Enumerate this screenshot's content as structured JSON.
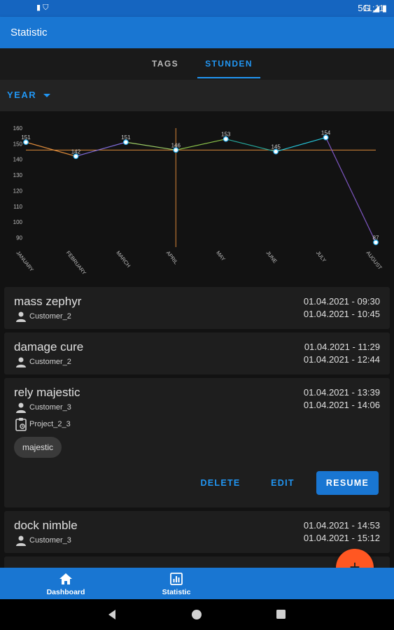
{
  "status_bar": {
    "time": "11:11",
    "network": "5G"
  },
  "app_bar": {
    "title": "Statistic"
  },
  "tabs": [
    {
      "label": "TAGS",
      "active": false
    },
    {
      "label": "STUNDEN",
      "active": true
    }
  ],
  "filter": {
    "selected": "YEAR"
  },
  "chart_data": {
    "type": "line",
    "categories": [
      "JANUARY",
      "FEBRUARY",
      "MARCH",
      "APRIL",
      "MAY",
      "JUNE",
      "JULY",
      "AUGUST"
    ],
    "values": [
      151,
      142,
      151,
      146,
      153,
      145,
      154,
      87
    ],
    "data_labels": [
      "151",
      "142",
      "151",
      "146",
      "153",
      "145",
      "154",
      "87"
    ],
    "y_ticks": [
      90,
      100,
      110,
      120,
      130,
      140,
      150,
      160
    ],
    "ylim": [
      84,
      160
    ],
    "average_line": 146,
    "highlight_category": "APRIL",
    "colors": {
      "point": "#ffffff",
      "point_stroke": "#29b6f6",
      "average": "#d9883a",
      "axis_text": "#bdbdbd"
    }
  },
  "entries": [
    {
      "title": "mass zephyr",
      "customer": "Customer_2",
      "start": "01.04.2021 - 09:30",
      "end": "01.04.2021 - 10:45"
    },
    {
      "title": "damage cure",
      "customer": "Customer_2",
      "start": "01.04.2021 - 11:29",
      "end": "01.04.2021 - 12:44"
    },
    {
      "title": "rely majestic",
      "customer": "Customer_3",
      "project": "Project_2_3",
      "tag": "majestic",
      "start": "01.04.2021 - 13:39",
      "end": "01.04.2021 - 14:06",
      "actions": {
        "delete": "DELETE",
        "edit": "EDIT",
        "resume": "RESUME"
      }
    },
    {
      "title": "dock nimble",
      "customer": "Customer_3",
      "start": "01.04.2021 - 14:53",
      "end": "01.04.2021 - 15:12"
    }
  ],
  "fab": {
    "icon": "+"
  },
  "bottom_nav": [
    {
      "label": "Dashboard",
      "icon": "home-icon"
    },
    {
      "label": "Statistic",
      "icon": "chart-icon"
    }
  ],
  "colors": {
    "primary": "#1976d2",
    "accent": "#2196f3",
    "fab": "#ff5722",
    "card": "#1e1e1e"
  }
}
